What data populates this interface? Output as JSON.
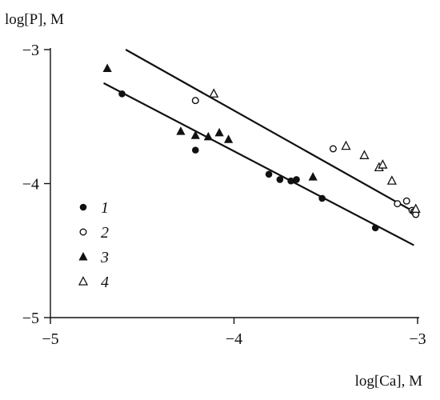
{
  "chart_data": {
    "type": "scatter",
    "title": "",
    "ylabel": "log[P], M",
    "xlabel": "log[Ca], M",
    "xlim": [
      -5,
      -3
    ],
    "ylim": [
      -5,
      -3
    ],
    "xticks": [
      "−5",
      "−4",
      "−3"
    ],
    "xtick_values": [
      -5,
      -4,
      -3
    ],
    "yticks": [
      "−3",
      "−4",
      "−5"
    ],
    "ytick_values": [
      -3,
      -4,
      -5
    ],
    "grid": false,
    "legend_position": "left-bottom",
    "series": [
      {
        "name": "1",
        "marker": "filled-circle",
        "points": [
          [
            -4.61,
            -3.33
          ],
          [
            -4.21,
            -3.75
          ],
          [
            -3.81,
            -3.93
          ],
          [
            -3.75,
            -3.97
          ],
          [
            -3.69,
            -3.98
          ],
          [
            -3.66,
            -3.97
          ],
          [
            -3.52,
            -4.11
          ],
          [
            -3.23,
            -4.33
          ]
        ]
      },
      {
        "name": "2",
        "marker": "open-circle",
        "points": [
          [
            -4.21,
            -3.38
          ],
          [
            -3.46,
            -3.74
          ],
          [
            -3.11,
            -4.15
          ],
          [
            -3.06,
            -4.13
          ],
          [
            -3.03,
            -4.2
          ],
          [
            -3.02,
            -4.21
          ],
          [
            -3.01,
            -4.23
          ]
        ]
      },
      {
        "name": "3",
        "marker": "filled-triangle",
        "points": [
          [
            -4.69,
            -3.14
          ],
          [
            -4.29,
            -3.61
          ],
          [
            -4.21,
            -3.64
          ],
          [
            -4.14,
            -3.65
          ],
          [
            -4.08,
            -3.62
          ],
          [
            -4.03,
            -3.67
          ],
          [
            -3.57,
            -3.95
          ]
        ]
      },
      {
        "name": "4",
        "marker": "open-triangle",
        "points": [
          [
            -4.11,
            -3.33
          ],
          [
            -3.39,
            -3.72
          ],
          [
            -3.29,
            -3.79
          ],
          [
            -3.21,
            -3.88
          ],
          [
            -3.19,
            -3.86
          ],
          [
            -3.14,
            -3.98
          ],
          [
            -3.01,
            -4.19
          ]
        ]
      }
    ],
    "fit_lines": [
      {
        "x": [
          -4.59,
          -3.02
        ],
        "y": [
          -3.0,
          -4.21
        ]
      },
      {
        "x": [
          -4.71,
          -3.02
        ],
        "y": [
          -3.25,
          -4.46
        ]
      }
    ]
  }
}
